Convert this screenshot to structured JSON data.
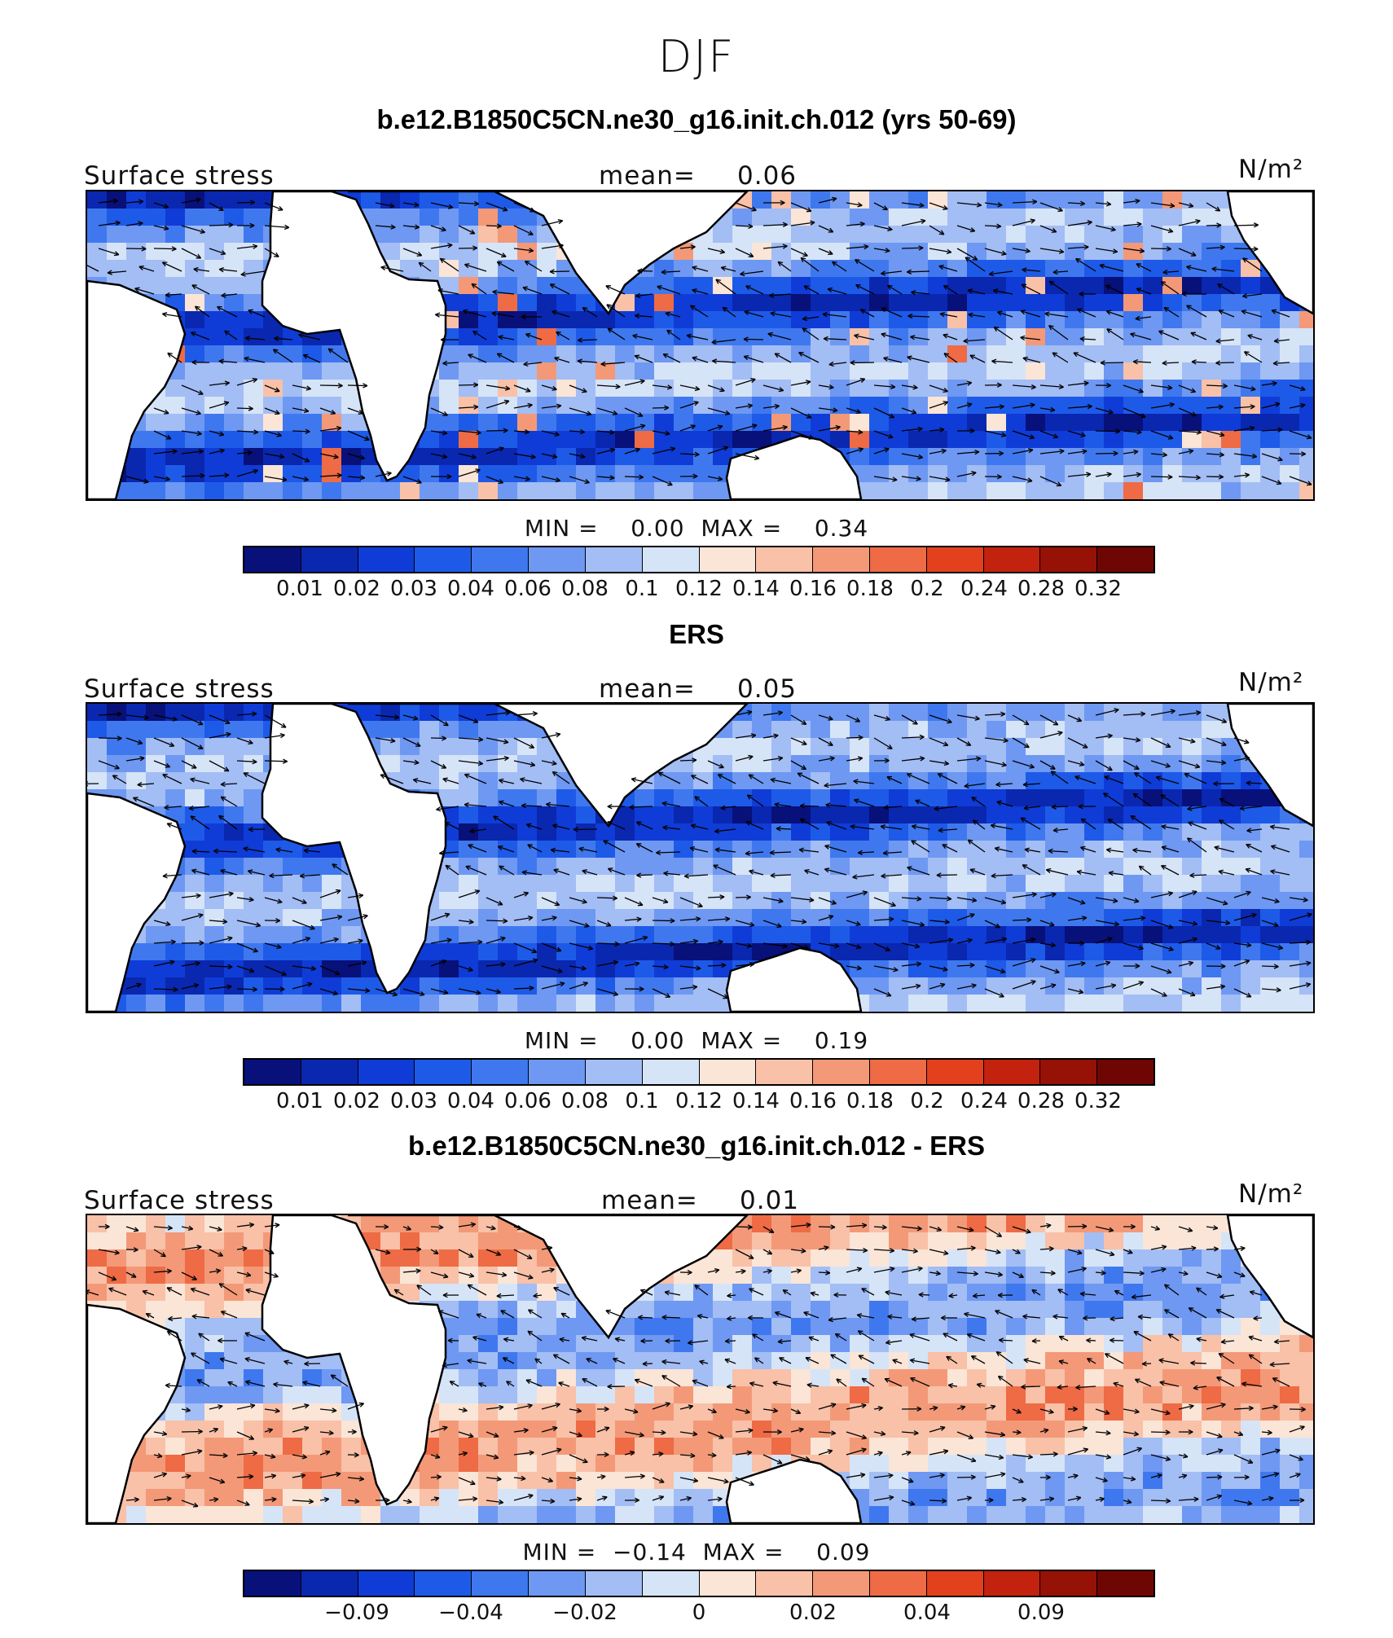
{
  "page_title": "DJF",
  "colors": [
    "#08107a",
    "#0a27b0",
    "#0f3cd6",
    "#1e5ae8",
    "#3f78ee",
    "#6e98f2",
    "#a3bdf5",
    "#d6e4f8",
    "#fbe5d6",
    "#f8c1a8",
    "#f39978",
    "#ee6b45",
    "#e3401d",
    "#c2220e",
    "#961206",
    "#6e0603"
  ],
  "land_color": "#ffffff",
  "panels": [
    {
      "title": "b.e12.B1850C5CN.ne30_g16.init.ch.012 (yrs 50-69)",
      "variable": "Surface stress",
      "mean_label": "mean=",
      "mean_value": "0.06",
      "units": "N/m²",
      "min_label": "MIN =",
      "min_value": "0.00",
      "max_label": "MAX =",
      "max_value": "0.34",
      "colorbar_ticks": [
        "0.01",
        "0.02",
        "0.03",
        "0.04",
        "0.06",
        "0.08",
        "0.1",
        "0.12",
        "0.14",
        "0.16",
        "0.18",
        "0.2",
        "0.24",
        "0.28",
        "0.32"
      ]
    },
    {
      "title": "ERS",
      "variable": "Surface stress",
      "mean_label": "mean=",
      "mean_value": "0.05",
      "units": "N/m²",
      "min_label": "MIN =",
      "min_value": "0.00",
      "max_label": "MAX =",
      "max_value": "0.19",
      "colorbar_ticks": [
        "0.01",
        "0.02",
        "0.03",
        "0.04",
        "0.06",
        "0.08",
        "0.1",
        "0.12",
        "0.14",
        "0.16",
        "0.18",
        "0.2",
        "0.24",
        "0.28",
        "0.32"
      ]
    },
    {
      "title": "b.e12.B1850C5CN.ne30_g16.init.ch.012 - ERS",
      "variable": "Surface stress",
      "mean_label": "mean=",
      "mean_value": "0.01",
      "units": "N/m²",
      "min_label": "MIN =",
      "min_value": "−0.14",
      "max_label": "MAX =",
      "max_value": "0.09",
      "colorbar_ticks": [
        "",
        "−0.09",
        "",
        "−0.04",
        "",
        "−0.02",
        "",
        "0",
        "",
        "0.02",
        "",
        "0.04",
        "",
        "0.09",
        ""
      ]
    }
  ]
}
